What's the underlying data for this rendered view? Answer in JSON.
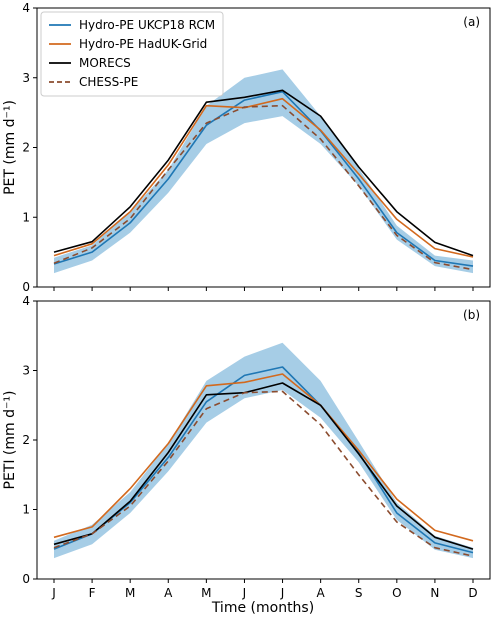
{
  "xlabel": "Time (months)",
  "months": [
    "J",
    "F",
    "M",
    "A",
    "M",
    "J",
    "J",
    "A",
    "S",
    "O",
    "N",
    "D"
  ],
  "legend": [
    {
      "name": "Hydro-PE UKCP18 RCM",
      "color": "#1f77b4",
      "dash": "solid"
    },
    {
      "name": "Hydro-PE HadUK-Grid",
      "color": "#d2691e",
      "dash": "solid"
    },
    {
      "name": "MORECS",
      "color": "#000000",
      "dash": "solid"
    },
    {
      "name": "CHESS-PE",
      "color": "#8b4c2f",
      "dash": "dashed"
    }
  ],
  "colors": {
    "band": "#a6cde6"
  },
  "chart_data": [
    {
      "type": "line",
      "panel_label": "(a)",
      "ylabel": "PET (mm d⁻¹)",
      "ylim": [
        0,
        4
      ],
      "yticks": [
        "0",
        "1",
        "2",
        "3",
        "4"
      ],
      "legend_placement": "top-left",
      "band": {
        "upper": [
          0.42,
          0.6,
          1.08,
          1.68,
          2.6,
          3.0,
          3.12,
          2.45,
          1.7,
          0.88,
          0.45,
          0.38
        ],
        "lower": [
          0.2,
          0.38,
          0.78,
          1.35,
          2.05,
          2.35,
          2.45,
          2.05,
          1.45,
          0.68,
          0.3,
          0.2
        ]
      },
      "series": [
        {
          "name": "Hydro-PE UKCP18 RCM",
          "values": [
            0.33,
            0.5,
            0.92,
            1.55,
            2.32,
            2.68,
            2.8,
            2.24,
            1.55,
            0.78,
            0.38,
            0.3
          ]
        },
        {
          "name": "Hydro-PE HadUK-Grid",
          "values": [
            0.45,
            0.62,
            1.08,
            1.75,
            2.6,
            2.57,
            2.7,
            2.25,
            1.62,
            0.97,
            0.55,
            0.43
          ]
        },
        {
          "name": "MORECS",
          "values": [
            0.5,
            0.65,
            1.15,
            1.82,
            2.65,
            2.72,
            2.82,
            2.45,
            1.72,
            1.08,
            0.64,
            0.45
          ]
        },
        {
          "name": "CHESS-PE",
          "values": [
            0.34,
            0.56,
            0.98,
            1.68,
            2.35,
            2.58,
            2.6,
            2.12,
            1.45,
            0.74,
            0.35,
            0.25
          ]
        }
      ]
    },
    {
      "type": "line",
      "panel_label": "(b)",
      "ylabel": "PETI (mm d⁻¹)",
      "ylim": [
        0,
        4
      ],
      "yticks": [
        "0",
        "1",
        "2",
        "3",
        "4"
      ],
      "band": {
        "upper": [
          0.55,
          0.78,
          1.25,
          1.95,
          2.85,
          3.2,
          3.4,
          2.85,
          1.98,
          1.1,
          0.62,
          0.45
        ],
        "lower": [
          0.3,
          0.5,
          0.95,
          1.55,
          2.25,
          2.6,
          2.72,
          2.32,
          1.68,
          0.85,
          0.42,
          0.3
        ]
      },
      "series": [
        {
          "name": "Hydro-PE UKCP18 RCM",
          "values": [
            0.43,
            0.65,
            1.1,
            1.75,
            2.55,
            2.93,
            3.05,
            2.5,
            1.82,
            0.95,
            0.52,
            0.38
          ]
        },
        {
          "name": "Hydro-PE HadUK-Grid",
          "values": [
            0.6,
            0.75,
            1.3,
            1.95,
            2.78,
            2.83,
            2.95,
            2.5,
            1.85,
            1.15,
            0.7,
            0.55
          ]
        },
        {
          "name": "MORECS",
          "values": [
            0.5,
            0.65,
            1.12,
            1.82,
            2.65,
            2.68,
            2.82,
            2.5,
            1.8,
            1.05,
            0.6,
            0.43
          ]
        },
        {
          "name": "CHESS-PE",
          "values": [
            0.45,
            0.65,
            1.05,
            1.7,
            2.45,
            2.68,
            2.7,
            2.22,
            1.5,
            0.82,
            0.45,
            0.33
          ]
        }
      ]
    }
  ]
}
